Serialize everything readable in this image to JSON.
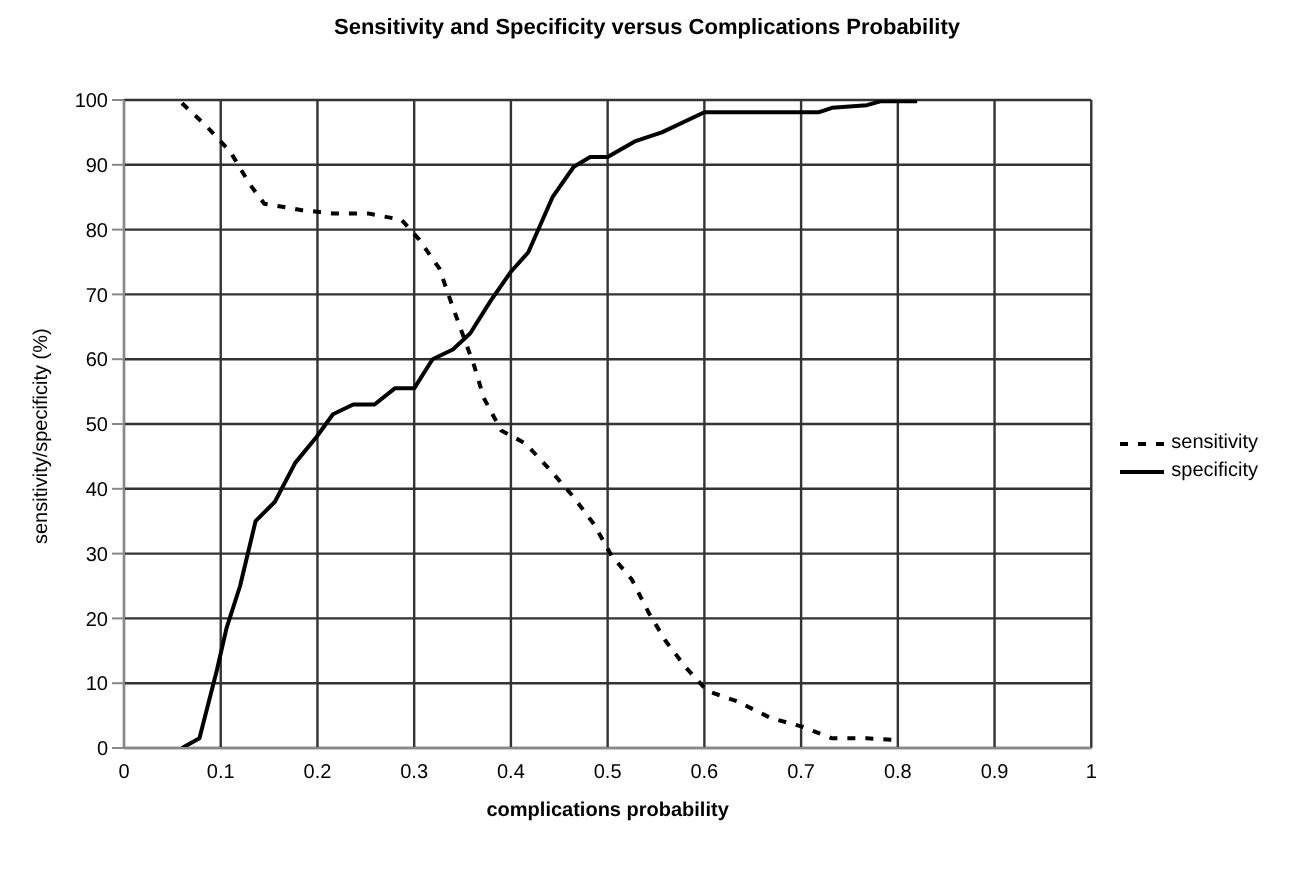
{
  "chart_data": {
    "type": "line",
    "title": "Sensitivity and Specificity versus Complications Probability",
    "xlabel": "complications probability",
    "ylabel": "sensitivity/specificity (%)",
    "xlim": [
      0,
      1
    ],
    "xticks": [
      0,
      0.1,
      0.2,
      0.3,
      0.4,
      0.5,
      0.6,
      0.7,
      0.8,
      0.9,
      1
    ],
    "ylim": [
      0,
      100
    ],
    "yticks": [
      0,
      10,
      20,
      30,
      40,
      50,
      60,
      70,
      80,
      90,
      100
    ],
    "grid": true,
    "legend": "right",
    "marker": "none",
    "series": [
      {
        "name": "sensitivity",
        "color": "#000000",
        "line_style": "dashed",
        "x": [
          0.06,
          0.085,
          0.11,
          0.13,
          0.145,
          0.184,
          0.216,
          0.252,
          0.287,
          0.305,
          0.326,
          0.34,
          0.362,
          0.372,
          0.39,
          0.415,
          0.44,
          0.465,
          0.486,
          0.504,
          0.525,
          0.542,
          0.56,
          0.581,
          0.603,
          0.634,
          0.669,
          0.701,
          0.732,
          0.768,
          0.803
        ],
        "values": [
          99.5,
          96,
          92,
          87,
          84,
          83,
          82.5,
          82.5,
          81.5,
          78.5,
          74,
          68,
          59,
          54,
          49,
          47,
          43,
          38.7,
          34.5,
          29.7,
          26,
          21,
          16.5,
          12.4,
          8.8,
          7.2,
          4.6,
          3.3,
          1.5,
          1.5,
          1.2
        ]
      },
      {
        "name": "specificity",
        "color": "#000000",
        "line_style": "solid",
        "x": [
          0.06,
          0.078,
          0.096,
          0.106,
          0.12,
          0.136,
          0.156,
          0.177,
          0.199,
          0.216,
          0.237,
          0.259,
          0.28,
          0.3,
          0.319,
          0.34,
          0.358,
          0.379,
          0.4,
          0.418,
          0.443,
          0.465,
          0.482,
          0.5,
          0.528,
          0.556,
          0.6,
          0.718,
          0.732,
          0.768,
          0.782,
          0.82
        ],
        "values": [
          0,
          1.5,
          12,
          18.5,
          25,
          35,
          38,
          44,
          48,
          51.5,
          53,
          53,
          55.5,
          55.5,
          60,
          61.5,
          64,
          69,
          73.5,
          76.5,
          85,
          89.7,
          91.2,
          91.2,
          93.6,
          95,
          98.1,
          98.1,
          98.8,
          99.2,
          99.8,
          99.8
        ]
      }
    ]
  }
}
